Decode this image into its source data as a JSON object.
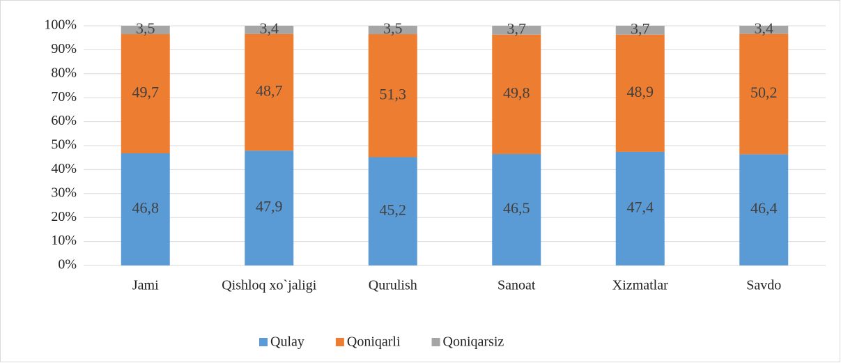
{
  "chart_data": {
    "type": "stacked_bar",
    "categories": [
      "Jami",
      "Qishloq xo`jaligi",
      "Qurulish",
      "Sanoat",
      "Xizmatlar",
      "Savdo"
    ],
    "series": [
      {
        "name": "Qulay",
        "color": "#5b9bd5",
        "values": [
          46.8,
          47.9,
          45.2,
          46.5,
          47.4,
          46.4
        ],
        "value_labels": [
          "46,8",
          "47,9",
          "45,2",
          "46,5",
          "47,4",
          "46,4"
        ]
      },
      {
        "name": "Qoniqarli",
        "color": "#ed7d31",
        "values": [
          49.7,
          48.7,
          51.3,
          49.8,
          48.9,
          50.2
        ],
        "value_labels": [
          "49,7",
          "48,7",
          "51,3",
          "49,8",
          "48,9",
          "50,2"
        ]
      },
      {
        "name": "Qoniqarsiz",
        "color": "#a5a5a5",
        "values": [
          3.5,
          3.4,
          3.5,
          3.7,
          3.7,
          3.4
        ],
        "value_labels": [
          "3,5",
          "3,4",
          "3,5",
          "3,7",
          "3,7",
          "3,4"
        ]
      }
    ],
    "ylim": [
      0,
      100
    ],
    "yticks": [
      {
        "value": 0,
        "label": "0%"
      },
      {
        "value": 10,
        "label": "10%"
      },
      {
        "value": 20,
        "label": "20%"
      },
      {
        "value": 30,
        "label": "30%"
      },
      {
        "value": 40,
        "label": "40%"
      },
      {
        "value": 50,
        "label": "50%"
      },
      {
        "value": 60,
        "label": "60%"
      },
      {
        "value": 70,
        "label": "70%"
      },
      {
        "value": 80,
        "label": "80%"
      },
      {
        "value": 90,
        "label": "90%"
      },
      {
        "value": 100,
        "label": "100%"
      }
    ],
    "grid": true,
    "legend": "bottom"
  }
}
